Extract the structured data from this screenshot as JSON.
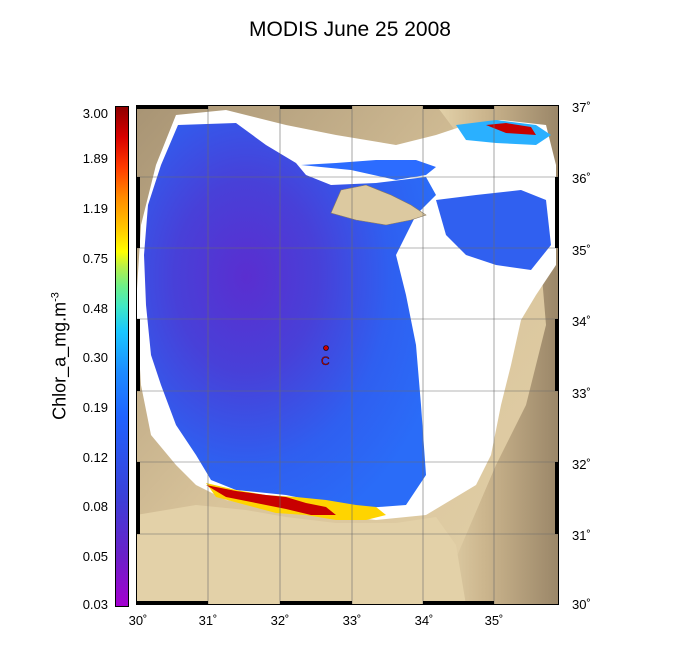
{
  "title": "MODIS June 25 2008",
  "colorbar": {
    "title": "Chlor_a_mg.m",
    "title_sup": "-3",
    "labels": [
      "3.00",
      "1.89",
      "1.19",
      "0.75",
      "0.48",
      "0.30",
      "0.19",
      "0.12",
      "0.08",
      "0.05",
      "0.03"
    ]
  },
  "lat_labels": [
    "37˚",
    "36˚",
    "35˚",
    "34˚",
    "33˚",
    "32˚",
    "31˚",
    "30˚"
  ],
  "lon_labels": [
    "30˚",
    "31˚",
    "32˚",
    "33˚",
    "34˚",
    "35˚"
  ],
  "station_marker": "C",
  "colors": {
    "land": "#dcc9a0",
    "highland": "#a89474",
    "low_chlorophyll": "#3a52e0",
    "very_low_chlorophyll": "#6a24c0",
    "high_chlorophyll": "#c80000",
    "no_data": "#ffffff"
  }
}
